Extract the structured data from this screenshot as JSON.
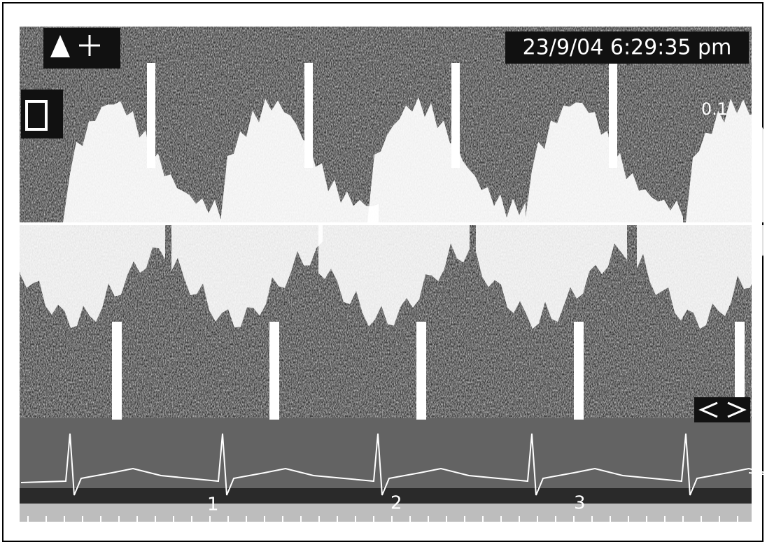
{
  "header": {
    "timestamp": "23/9/04 6:29:35 pm"
  },
  "scale": {
    "label": "0.1"
  },
  "timeline": {
    "markers": [
      "1",
      "2",
      "3"
    ]
  }
}
